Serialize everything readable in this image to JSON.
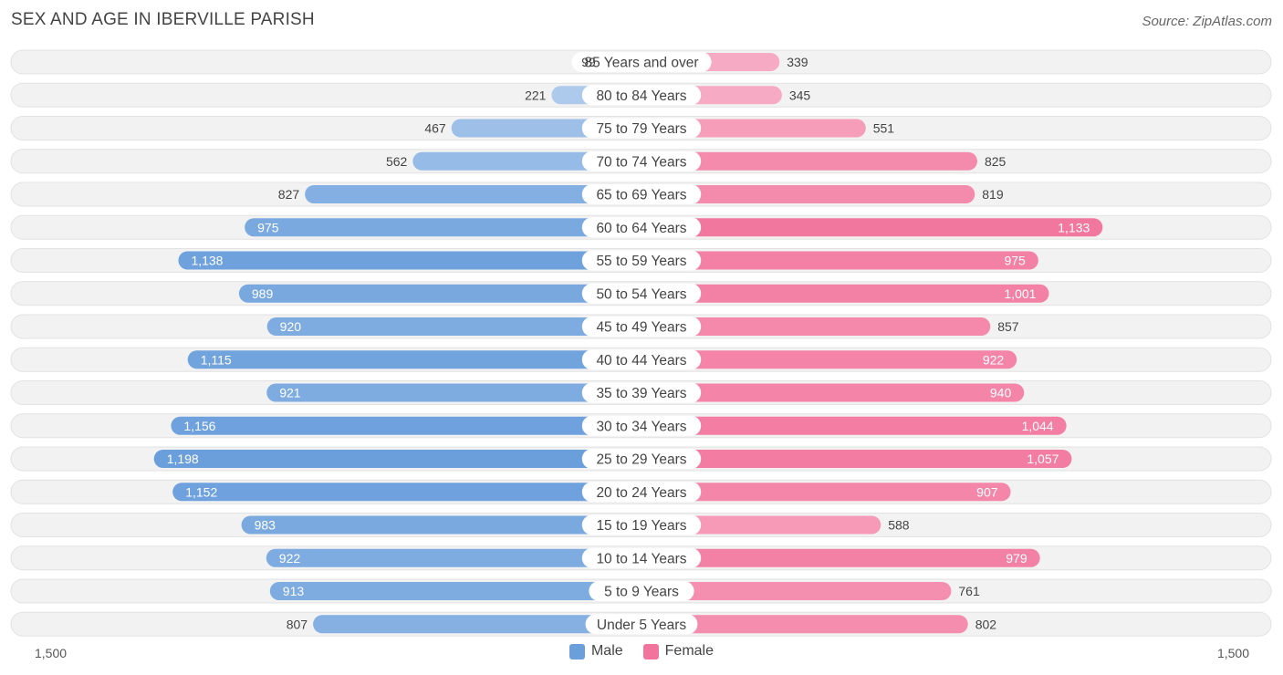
{
  "title": "SEX AND AGE IN IBERVILLE PARISH",
  "source": "Source: ZipAtlas.com",
  "colors": {
    "male": "#6b9fdc",
    "female": "#f2739c",
    "row_bg": "#f2f2f2",
    "label_bg": "#ffffff"
  },
  "chart_data": {
    "type": "bar",
    "orientation": "horizontal-diverging",
    "title": "SEX AND AGE IN IBERVILLE PARISH",
    "categories": [
      "85 Years and over",
      "80 to 84 Years",
      "75 to 79 Years",
      "70 to 74 Years",
      "65 to 69 Years",
      "60 to 64 Years",
      "55 to 59 Years",
      "50 to 54 Years",
      "45 to 49 Years",
      "40 to 44 Years",
      "35 to 39 Years",
      "30 to 34 Years",
      "25 to 29 Years",
      "20 to 24 Years",
      "15 to 19 Years",
      "10 to 14 Years",
      "5 to 9 Years",
      "Under 5 Years"
    ],
    "series": [
      {
        "name": "Male",
        "values": [
          99,
          221,
          467,
          562,
          827,
          975,
          1138,
          989,
          920,
          1115,
          921,
          1156,
          1198,
          1152,
          983,
          922,
          913,
          807
        ]
      },
      {
        "name": "Female",
        "values": [
          339,
          345,
          551,
          825,
          819,
          1133,
          975,
          1001,
          857,
          922,
          940,
          1044,
          1057,
          907,
          588,
          979,
          761,
          802
        ]
      }
    ],
    "value_labels": {
      "male": [
        "99",
        "221",
        "467",
        "562",
        "827",
        "975",
        "1,138",
        "989",
        "920",
        "1,115",
        "921",
        "1,156",
        "1,198",
        "1,152",
        "983",
        "922",
        "913",
        "807"
      ],
      "female": [
        "339",
        "345",
        "551",
        "825",
        "819",
        "1,133",
        "975",
        "1,001",
        "857",
        "922",
        "940",
        "1,044",
        "1,057",
        "907",
        "588",
        "979",
        "761",
        "802"
      ]
    },
    "xlim": [
      0,
      1500
    ],
    "axis_left_label": "1,500",
    "axis_right_label": "1,500",
    "legend": [
      "Male",
      "Female"
    ],
    "legend_position": "bottom-center"
  }
}
